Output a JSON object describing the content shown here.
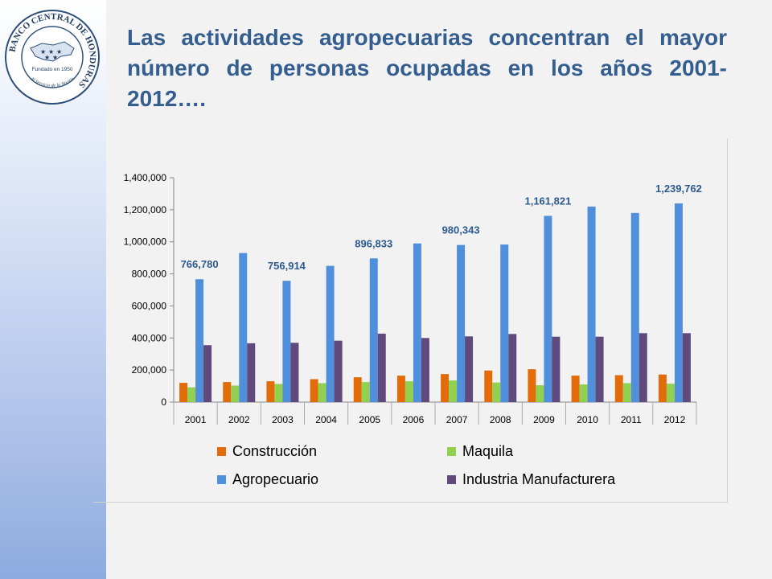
{
  "slide": {
    "title": "Las actividades agropecuarias concentran el mayor número de personas ocupadas en los años 2001-2012…."
  },
  "logo": {
    "ring_text": "BANCO CENTRAL DE HONDURAS",
    "founded": "Fundado en 1950",
    "motto": "Al Servicio de la Nación"
  },
  "colors": {
    "title": "#355e90",
    "construccion": "#e36c0a",
    "maquila": "#92d050",
    "agropecuario": "#4f8fdb",
    "industria": "#604a7b"
  },
  "chart_data": {
    "type": "bar",
    "title": "",
    "xlabel": "",
    "ylabel": "",
    "ylim": [
      0,
      1400000
    ],
    "yticks": [
      "0",
      "200,000",
      "400,000",
      "600,000",
      "800,000",
      "1,000,000",
      "1,200,000",
      "1,400,000"
    ],
    "categories": [
      "2001",
      "2002",
      "2003",
      "2004",
      "2005",
      "2006",
      "2007",
      "2008",
      "2009",
      "2010",
      "2011",
      "2012"
    ],
    "series": [
      {
        "name": "Construcción",
        "color": "#e36c0a",
        "values": [
          120000,
          125000,
          130000,
          143000,
          155000,
          165000,
          175000,
          197000,
          205000,
          165000,
          168000,
          172000
        ]
      },
      {
        "name": "Maquila",
        "color": "#92d050",
        "values": [
          92000,
          103000,
          113000,
          118000,
          125000,
          130000,
          135000,
          122000,
          105000,
          110000,
          118000,
          115000
        ]
      },
      {
        "name": "Agropecuario",
        "color": "#4f8fdb",
        "values": [
          766780,
          930000,
          756914,
          850000,
          896833,
          990000,
          980343,
          983000,
          1161821,
          1220000,
          1180000,
          1239762
        ]
      },
      {
        "name": "Industria Manufacturera",
        "color": "#604a7b",
        "values": [
          355000,
          367000,
          370000,
          383000,
          427000,
          400000,
          410000,
          425000,
          408000,
          408000,
          430000,
          430000
        ]
      }
    ],
    "data_labels": [
      {
        "series": "Agropecuario",
        "category": "2001",
        "text": "766,780"
      },
      {
        "series": "Agropecuario",
        "category": "2003",
        "text": "756,914"
      },
      {
        "series": "Agropecuario",
        "category": "2005",
        "text": "896,833"
      },
      {
        "series": "Agropecuario",
        "category": "2007",
        "text": "980,343"
      },
      {
        "series": "Agropecuario",
        "category": "2009",
        "text": "1,161,821"
      },
      {
        "series": "Agropecuario",
        "category": "2012",
        "text": "1,239,762"
      }
    ],
    "legend": [
      "Construcción",
      "Maquila",
      "Agropecuario",
      "Industria Manufacturera"
    ],
    "legend_position": "bottom",
    "grid": false
  }
}
